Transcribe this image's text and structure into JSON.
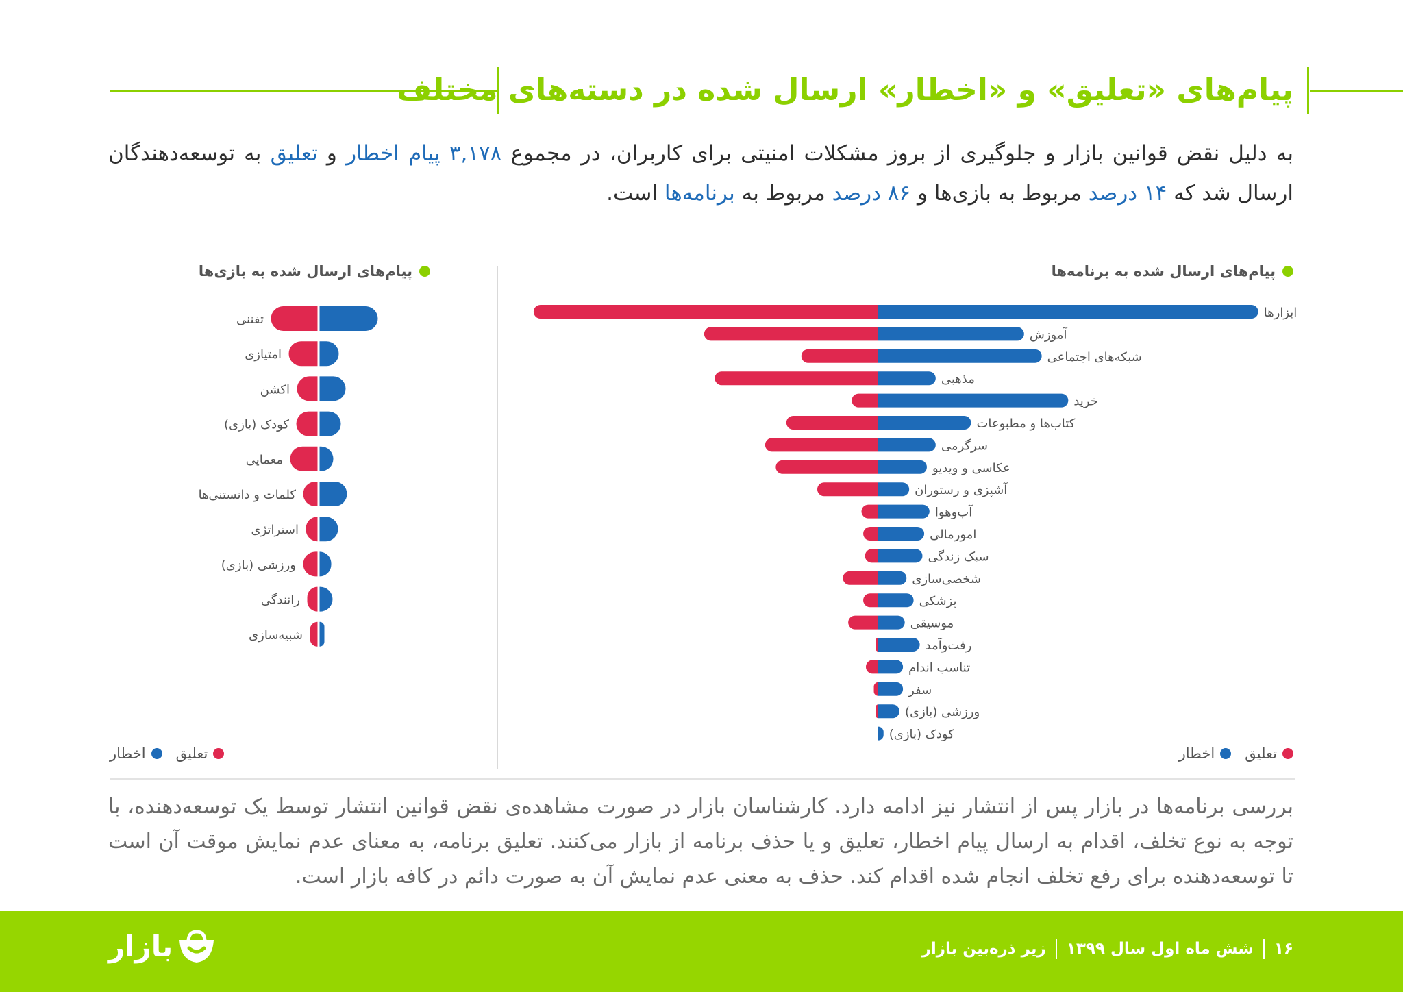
{
  "title": "پیام‌های «تعلیق» و «اخطار» ارسال شده در دسته‌های مختلف",
  "intro": {
    "p1": "به دلیل نقض قوانین بازار و جلوگیری از بروز مشکلات امنیتی برای کاربران، در مجموع ",
    "h1": "۳,۱۷۸ پیام اخطار",
    "p2": " و ",
    "h2": "تعلیق",
    "p3": " به توسعه‌دهندگان ارسال شد که ",
    "h3": "۱۴ درصد",
    "p4": " مربوط به بازی‌ها و ",
    "h4": "۸۶ درصد",
    "p5": " مربوط به ",
    "h5": "برنامه‌ها",
    "p6": " است."
  },
  "outro": "بررسی برنامه‌ها در بازار پس از انتشار نیز ادامه دارد. کارشناسان بازار در صورت مشاهده‌ی نقض قوانین انتشار توسط یک توسعه‌دهنده، با توجه به نوع تخلف، اقدام به ارسال پیام اخطار، تعلیق و یا حذف برنامه از بازار می‌کنند. تعلیق برنامه، به معنای عدم نمایش موقت آن است تا توسعه‌دهنده برای رفع تخلف انجام شده اقدام کند. حذف به معنی عدم نمایش آن به صورت دائم در کافه بازار است.",
  "footer": {
    "page": "۱۶",
    "period": "شش ماه اول سال ۱۳۹۹",
    "report": "زیر ذره‌بین بازار",
    "logo": "بازار"
  },
  "colors": {
    "warning": "#1e6bb8",
    "suspension": "#e0284f",
    "accent": "#8cd000"
  },
  "chart_data": [
    {
      "type": "bar",
      "title": "پیام‌های ارسال شده به برنامه‌ها",
      "legend": [
        "اخطار",
        "تعلیق"
      ],
      "legend_position": "bottom-right",
      "categories": [
        "ابزارها",
        "آموزش",
        "شبکه‌های اجتماعی",
        "مذهبی",
        "خرید",
        "کتاب‌ها و مطبوعات",
        "سرگرمی",
        "عکاسی و ویدیو",
        "آشپزی و رستوران",
        "آب‌وهوا",
        "امورمالی",
        "سبک زندگی",
        "شخصی‌سازی",
        "پزشکی",
        "موسیقی",
        "رفت‌وآمد",
        "تناسب اندام",
        "سفر",
        "ورزشی (بازی)",
        "کودک (بازی)"
      ],
      "series": [
        {
          "name": "اخطار",
          "values": [
            430,
            165,
            185,
            65,
            215,
            105,
            65,
            55,
            35,
            58,
            52,
            50,
            32,
            40,
            30,
            47,
            28,
            28,
            24,
            6
          ]
        },
        {
          "name": "تعلیق",
          "values": [
            390,
            197,
            87,
            185,
            30,
            104,
            128,
            116,
            69,
            19,
            17,
            15,
            40,
            17,
            34,
            3,
            14,
            5,
            3,
            0
          ]
        }
      ]
    },
    {
      "type": "bar",
      "title": "پیام‌های ارسال شده به بازی‌ها",
      "legend": [
        "اخطار",
        "تعلیق"
      ],
      "legend_position": "bottom-left",
      "categories": [
        "تفننی",
        "امتیازی",
        "اکشن",
        "کودک (بازی)",
        "معمایی",
        "کلمات و دانستنی‌ها",
        "استراتژی",
        "ورزشی (بازی)",
        "رانندگی",
        "شبیه‌سازی"
      ],
      "series": [
        {
          "name": "اخطار",
          "values": [
            85,
            28,
            38,
            31,
            20,
            40,
            27,
            17,
            19,
            7
          ]
        },
        {
          "name": "تعلیق",
          "values": [
            68,
            42,
            30,
            31,
            40,
            21,
            17,
            21,
            15,
            11
          ]
        }
      ]
    }
  ]
}
